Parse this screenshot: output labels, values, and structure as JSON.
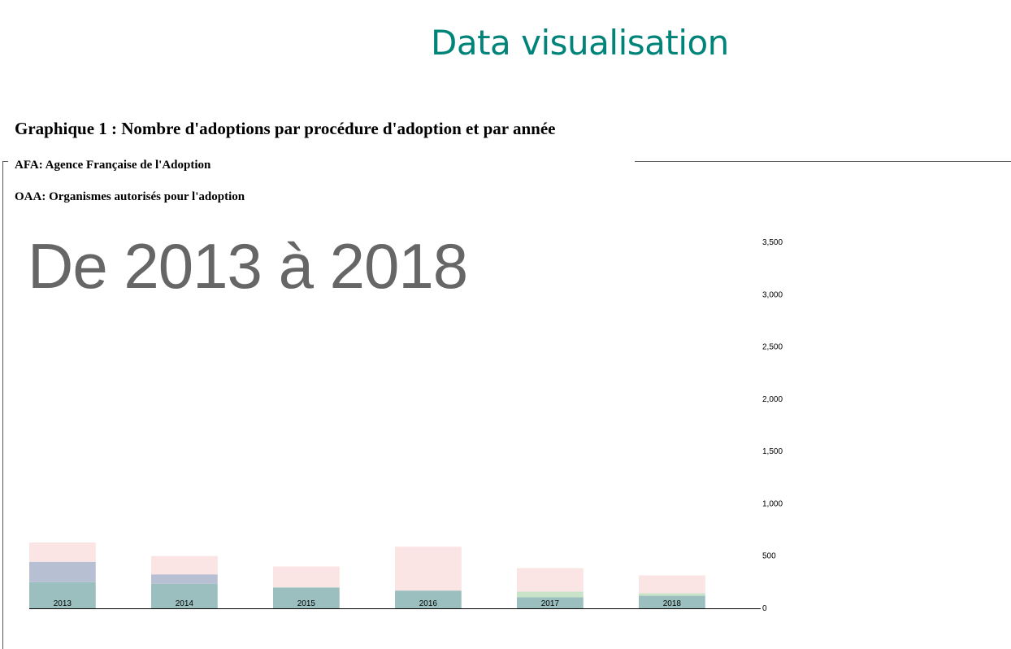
{
  "page": {
    "title": "Data visualisation",
    "chart_heading": "Graphique 1 : Nombre d'adoptions par procédure d'adoption et par année",
    "notes": {
      "afa": "AFA: Agence Française de l'Adoption",
      "oaa": "OAA: Organismes autorisés pour l'adoption"
    },
    "range_label": "De 2013 à 2018"
  },
  "chart_data": {
    "type": "bar",
    "stacked": true,
    "categories": [
      "2013",
      "2014",
      "2015",
      "2016",
      "2017",
      "2018"
    ],
    "series": [
      {
        "values": [
          250,
          235,
          200,
          170,
          105,
          120
        ],
        "color": "#9bbfbf"
      },
      {
        "values": [
          0,
          0,
          0,
          0,
          55,
          25
        ],
        "color": "#c9e3c9"
      },
      {
        "values": [
          195,
          90,
          0,
          0,
          0,
          0
        ],
        "color": "#b7bfd3"
      },
      {
        "values": [
          185,
          175,
          200,
          420,
          225,
          170
        ],
        "color": "#fbe4e4"
      }
    ],
    "ylim": [
      0,
      3500
    ],
    "yticks": [
      0,
      500,
      1000,
      1500,
      2000,
      2500,
      3000,
      3500
    ],
    "ytick_labels": [
      "0",
      "500",
      "1,000",
      "1,500",
      "2,000",
      "2,500",
      "3,000",
      "3,500"
    ],
    "axis": {
      "y_position": "right"
    },
    "grid": false,
    "legend": "none"
  }
}
